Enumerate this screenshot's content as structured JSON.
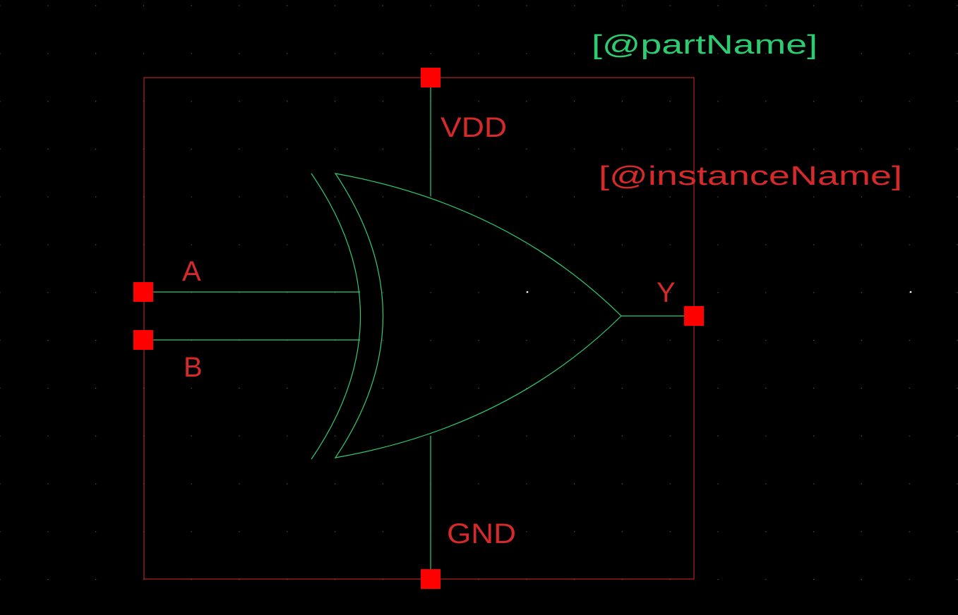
{
  "colors": {
    "background": "#000000",
    "grid_dot": "#5a5a5a",
    "boundary": "#d62a2a",
    "pin_square": "#ff0000",
    "wire": "#2ecc71",
    "pin_label": "#d42a2a",
    "part_name": "#2ecc71",
    "instance_name": "#d42a2a"
  },
  "symbol": {
    "type": "XOR gate",
    "part_name_label": "[@partName]",
    "instance_name_label": "[@instanceName]"
  },
  "pins": {
    "vdd": {
      "label": "VDD"
    },
    "gnd": {
      "label": "GND"
    },
    "a": {
      "label": "A"
    },
    "b": {
      "label": "B"
    },
    "y": {
      "label": "Y"
    }
  }
}
